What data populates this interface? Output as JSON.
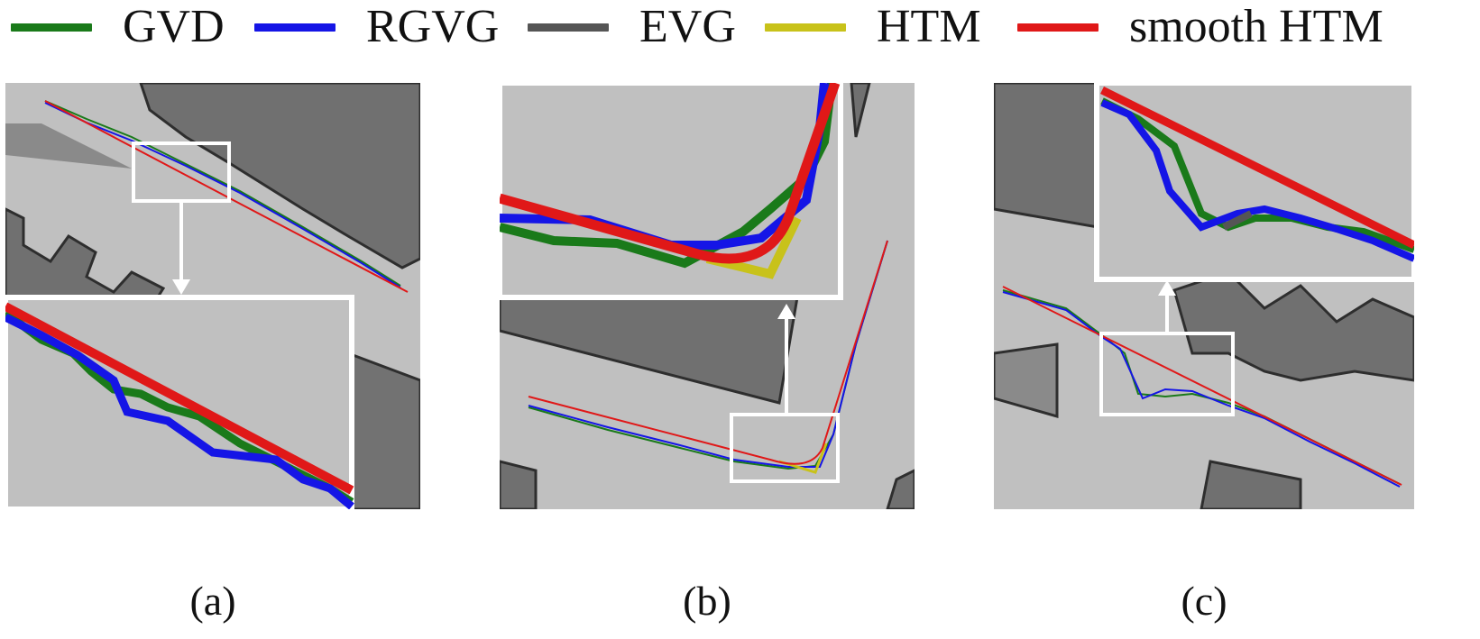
{
  "legend": [
    {
      "label": "GVD",
      "color": "#1a7a1a"
    },
    {
      "label": "RGVG",
      "color": "#1515e6"
    },
    {
      "label": "EVG",
      "color": "#555555"
    },
    {
      "label": "HTM",
      "color": "#c8c21a"
    },
    {
      "label": "smooth HTM",
      "color": "#e01818"
    }
  ],
  "captions": {
    "a": "(a)",
    "b": "(b)",
    "c": "(c)"
  },
  "colors": {
    "background_free": "#c0c0c0",
    "obstacle": "#6e6e6e",
    "obstacle_edge": "#2e2e2e",
    "inset_border": "#ffffff"
  }
}
